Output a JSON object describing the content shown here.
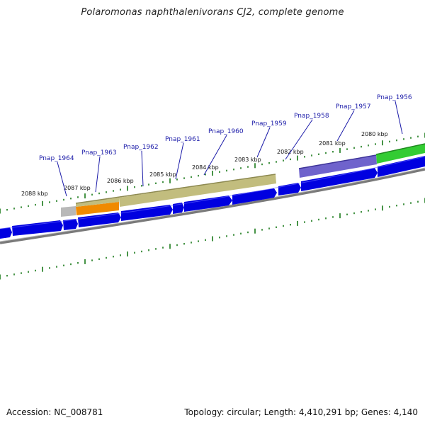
{
  "title": "Polaromonas naphthalenivorans CJ2, complete genome",
  "footer": {
    "accession": "Accession: NC_008781",
    "summary": "Topology: circular; Length: 4,410,291 bp; Genes: 4,140"
  },
  "scale_labels": [
    "2088 kbp",
    "2087 kbp",
    "2086 kbp",
    "2085 kbp",
    "2084 kbp",
    "2083 kbp",
    "2082 kbp",
    "2081 kbp",
    "2080 kbp"
  ],
  "gene_labels": [
    "Pnap_1964",
    "Pnap_1963",
    "Pnap_1962",
    "Pnap_1961",
    "Pnap_1960",
    "Pnap_1959",
    "Pnap_1958",
    "Pnap_1957",
    "Pnap_1956"
  ],
  "colors": {
    "gene_arrow": "#0000e0",
    "backbone": "#7a7a7a",
    "ticks": "#1a7a1a",
    "cog_khaki": "#c2bd7e",
    "cog_purple": "#6f63cc",
    "cog_green": "#33cc33",
    "cog_orange": "#f08a00",
    "cog_gray": "#b8b8b8",
    "label_text": "#1a1aa8"
  }
}
